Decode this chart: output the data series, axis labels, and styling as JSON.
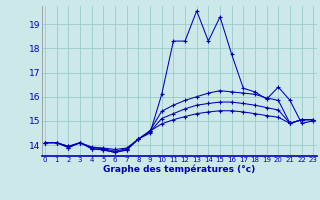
{
  "background_color": "#cce8e8",
  "grid_color": "#99cccc",
  "line_color": "#0000bb",
  "title": "Graphe des températures (°c)",
  "ylabel_values": [
    14,
    15,
    16,
    17,
    18,
    19
  ],
  "xlabel_values": [
    0,
    1,
    2,
    3,
    4,
    5,
    6,
    7,
    8,
    9,
    10,
    11,
    12,
    13,
    14,
    15,
    16,
    17,
    18,
    19,
    20,
    21,
    22,
    23
  ],
  "xlim": [
    -0.3,
    23.3
  ],
  "ylim": [
    13.55,
    19.75
  ],
  "curves": [
    [
      14.1,
      14.1,
      13.9,
      14.1,
      13.85,
      13.8,
      13.7,
      13.8,
      14.25,
      14.5,
      16.1,
      18.3,
      18.3,
      19.55,
      18.3,
      19.3,
      17.75,
      16.35,
      16.2,
      15.9,
      16.4,
      15.85,
      14.9,
      15.0
    ],
    [
      14.1,
      14.1,
      13.9,
      14.1,
      13.85,
      13.8,
      13.7,
      13.8,
      14.25,
      14.6,
      15.4,
      15.65,
      15.85,
      16.0,
      16.15,
      16.25,
      16.2,
      16.15,
      16.1,
      15.95,
      15.85,
      14.9,
      15.05,
      15.05
    ],
    [
      14.1,
      14.1,
      13.95,
      14.1,
      13.9,
      13.85,
      13.75,
      13.85,
      14.25,
      14.55,
      15.1,
      15.3,
      15.5,
      15.65,
      15.72,
      15.78,
      15.78,
      15.72,
      15.65,
      15.55,
      15.45,
      14.9,
      15.05,
      15.05
    ],
    [
      14.1,
      14.1,
      13.95,
      14.1,
      13.92,
      13.88,
      13.82,
      13.88,
      14.25,
      14.58,
      14.88,
      15.05,
      15.18,
      15.3,
      15.37,
      15.42,
      15.42,
      15.37,
      15.3,
      15.22,
      15.15,
      14.9,
      15.05,
      15.05
    ]
  ]
}
